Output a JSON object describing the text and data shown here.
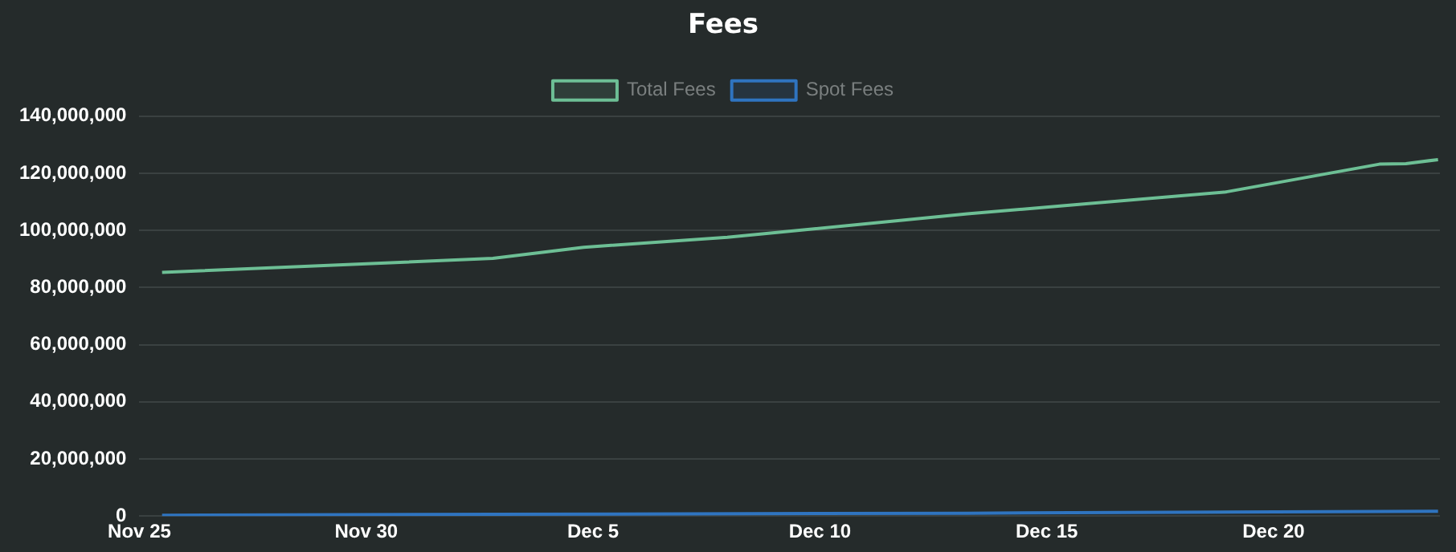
{
  "chart_data": {
    "type": "line",
    "title": "Fees",
    "xlim": [
      "--11-25",
      "--12-23T16:00"
    ],
    "xticks": [
      {
        "value": "--11-25",
        "label": "Nov 25"
      },
      {
        "value": "--11-30",
        "label": "Nov 30"
      },
      {
        "value": "--12-05",
        "label": "Dec 5"
      },
      {
        "value": "--12-10",
        "label": "Dec 10"
      },
      {
        "value": "--12-15",
        "label": "Dec 15"
      },
      {
        "value": "--12-20",
        "label": "Dec 20"
      }
    ],
    "ylim": [
      0,
      140000000
    ],
    "yticks": [
      0,
      {
        "value": 20000000,
        "label": "20,000,000"
      },
      {
        "value": 40000000,
        "label": "40,000,000"
      },
      {
        "value": 60000000,
        "label": "60,000,000"
      },
      {
        "value": 80000000,
        "label": "80,000,000"
      },
      {
        "value": 100000000,
        "label": "100,000,000"
      },
      {
        "value": 120000000,
        "label": "120,000,000"
      },
      {
        "value": 140000000,
        "label": "140,000,000"
      }
    ],
    "series": [
      {
        "name": "Total Fees",
        "color": "#6dbf95",
        "x": [
          "--11-25T12:00",
          "--12-02T19:00",
          "--12-04T19:00",
          "--12-07T23:00",
          "--12-13T06:00",
          "--12-18T23:00",
          "--12-22T08:00",
          "--12-22T22:00",
          "--12-23T15:00"
        ],
        "values": [
          85300000,
          90200000,
          94100000,
          97600000,
          105800000,
          113500000,
          123200000,
          123400000,
          124800000
        ]
      },
      {
        "name": "Spot Fees",
        "color": "#2f74c0",
        "x": [
          "--11-25T12:00",
          "--12-02T19:00",
          "--12-13T06:00",
          "--12-23T15:00"
        ],
        "values": [
          300000,
          600000,
          1000000,
          1700000
        ]
      }
    ],
    "grid": "y",
    "legend": "top",
    "marker": "none",
    "line_style": "solid"
  }
}
